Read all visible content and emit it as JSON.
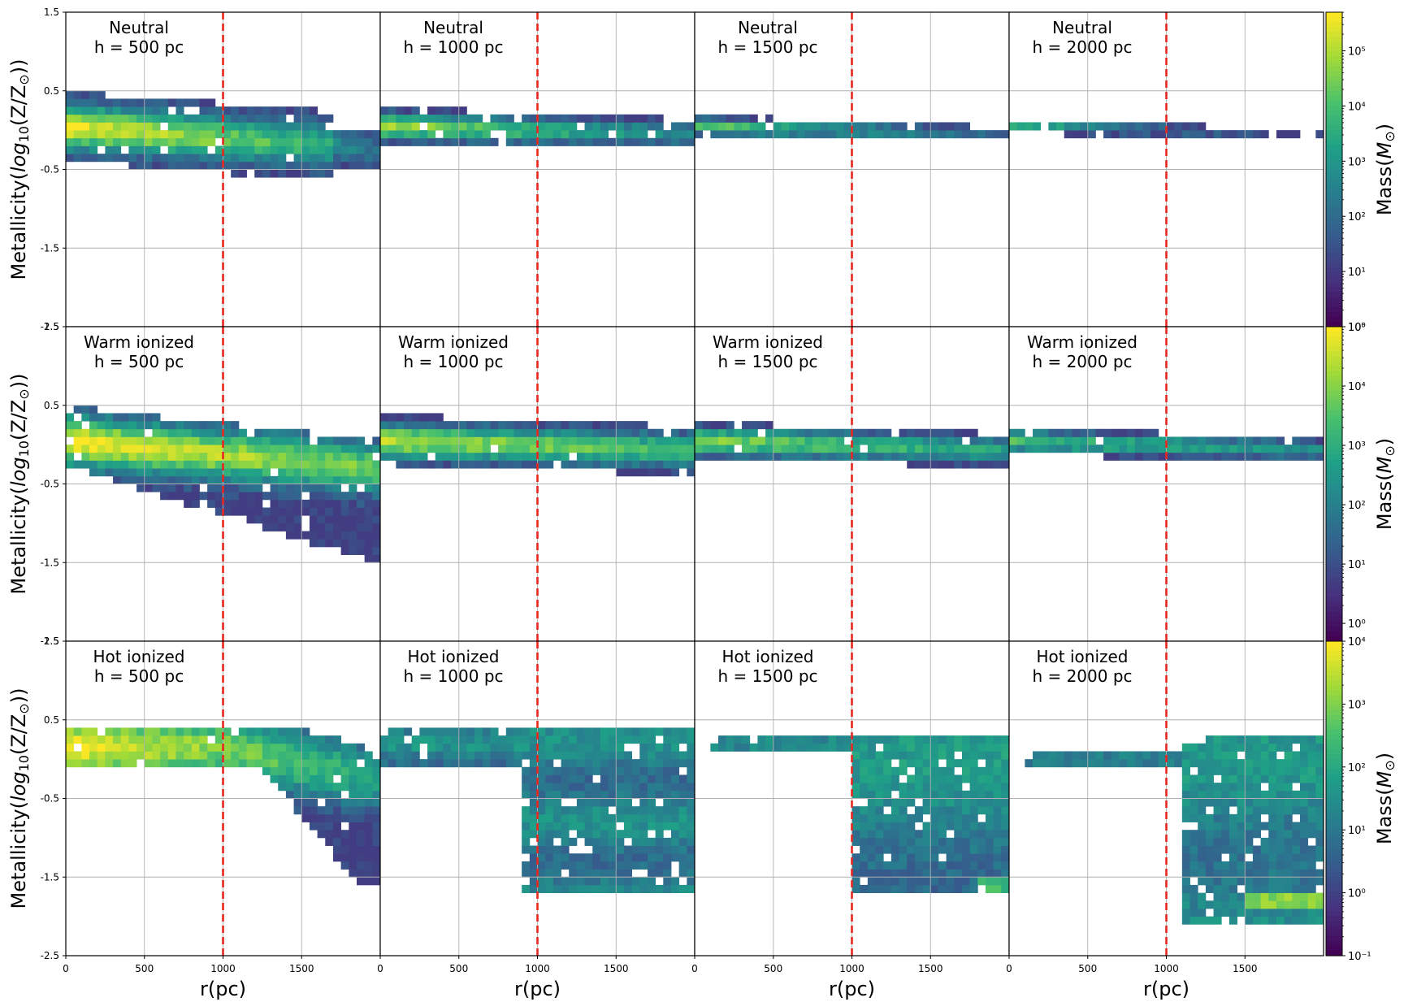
{
  "chart_data": {
    "type": "heatmap",
    "title": "",
    "xlabel": "r(pc)",
    "ylabel": "Metallicity(log10(Z/Z⊙))",
    "ylabel_parts": {
      "pre": "Metallicity(",
      "italic": "log",
      "sub": "10",
      "post": "(Z/Z",
      "sun": "⊙",
      "end": "))"
    },
    "xlim": [
      0,
      2000
    ],
    "ylim": [
      -2.5,
      1.5
    ],
    "x_ticks": [
      0,
      500,
      1000,
      1500
    ],
    "x_tick_labels": [
      "0",
      "500",
      "1000",
      "1500"
    ],
    "y_ticks": [
      1.5,
      0.5,
      -0.5,
      -1.5,
      -2.5
    ],
    "y_tick_labels": [
      "1.5",
      "0.5",
      "-0.5",
      "-1.5",
      "-2.5"
    ],
    "reference_line": {
      "x": 1000,
      "color": "#e8281e",
      "style": "dashed"
    },
    "grid": true,
    "colormap": "viridis",
    "cmap_stops": [
      "#440154",
      "#46327e",
      "#365c8d",
      "#277f8e",
      "#1fa187",
      "#4ac16d",
      "#a0da39",
      "#fde725"
    ],
    "colorbar_label_parts": {
      "pre": "Mass(",
      "italic": "M",
      "sun": "⊙",
      "end": ")"
    },
    "rows": [
      {
        "phase": "Neutral",
        "colorbar": {
          "label": "Mass(M⊙)",
          "log_min": 0,
          "log_max": 5.7,
          "tick_exps": [
            0,
            1,
            2,
            3,
            4,
            5
          ],
          "tick_labels": [
            "10⁰",
            "10¹",
            "10²",
            "10³",
            "10⁴",
            "10⁵"
          ]
        }
      },
      {
        "phase": "Warm ionized",
        "colorbar": {
          "label": "Mass(M⊙)",
          "log_min": -0.3,
          "log_max": 5.0,
          "tick_exps": [
            0,
            1,
            2,
            3,
            4
          ],
          "tick_labels": [
            "10⁰",
            "10¹",
            "10²",
            "10³",
            "10⁴"
          ],
          "top_label": "10⁵"
        }
      },
      {
        "phase": "Hot ionized",
        "colorbar": {
          "label": "Mass(M⊙)",
          "log_min": -1,
          "log_max": 4,
          "tick_exps": [
            -1,
            0,
            1,
            2,
            3,
            4
          ],
          "tick_labels": [
            "10⁻¹",
            "10⁰",
            "10¹",
            "10²",
            "10³",
            "10⁴"
          ]
        }
      }
    ],
    "panels": [
      {
        "row": 0,
        "col": 0,
        "title": "Neutral",
        "subtitle": "h = 500 pc"
      },
      {
        "row": 0,
        "col": 1,
        "title": "Neutral",
        "subtitle": "h = 1000 pc"
      },
      {
        "row": 0,
        "col": 2,
        "title": "Neutral",
        "subtitle": "h = 1500 pc"
      },
      {
        "row": 0,
        "col": 3,
        "title": "Neutral",
        "subtitle": "h = 2000 pc"
      },
      {
        "row": 1,
        "col": 0,
        "title": "Warm ionized",
        "subtitle": "h = 500 pc"
      },
      {
        "row": 1,
        "col": 1,
        "title": "Warm ionized",
        "subtitle": "h = 1000 pc"
      },
      {
        "row": 1,
        "col": 2,
        "title": "Warm ionized",
        "subtitle": "h = 1500 pc"
      },
      {
        "row": 1,
        "col": 3,
        "title": "Warm ionized",
        "subtitle": "h = 2000 pc"
      },
      {
        "row": 2,
        "col": 0,
        "title": "Hot ionized",
        "subtitle": "h = 500 pc"
      },
      {
        "row": 2,
        "col": 1,
        "title": "Hot ionized",
        "subtitle": "h = 1000 pc"
      },
      {
        "row": 2,
        "col": 2,
        "title": "Hot ionized",
        "subtitle": "h = 1500 pc"
      },
      {
        "row": 2,
        "col": 3,
        "title": "Hot ionized",
        "subtitle": "h = 2000 pc"
      }
    ]
  }
}
